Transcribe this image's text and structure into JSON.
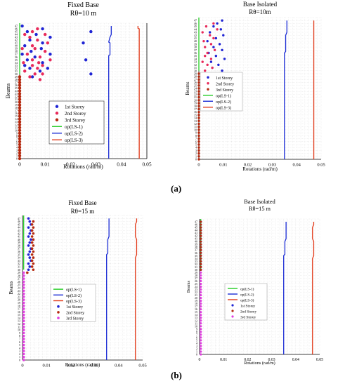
{
  "figure": {
    "label_a": "(a)",
    "label_b": "(b)"
  },
  "chart_data": [
    {
      "type": "scatter",
      "title": "Fixed Base",
      "subtitle": "Rθ=10 m",
      "xlabel": "Rotations (rad/m)",
      "ylabel": "Beams",
      "xlim": [
        0,
        0.05
      ],
      "ylim": [
        0,
        48
      ],
      "xticks": [
        "0",
        "0.01",
        "0.02",
        "0.03",
        "0.04",
        "0.05"
      ],
      "legend": [
        "1st Storey",
        "2nd Storey",
        "3rd Storey",
        "op(LS-1)",
        "op(LS-2)",
        "op(LS-3)"
      ],
      "legend_position": "middle",
      "series": [
        {
          "name": "1st Storey",
          "color": "#1f24d4",
          "marker": "circle",
          "points": [
            [
              0.001,
              47
            ],
            [
              0.009,
              46
            ],
            [
              0.003,
              45
            ],
            [
              0.028,
              45
            ],
            [
              0.0065,
              44
            ],
            [
              0.012,
              43
            ],
            [
              0.004,
              42
            ],
            [
              0.009,
              41
            ],
            [
              0.025,
              41
            ],
            [
              0.002,
              40
            ],
            [
              0.0085,
              39
            ],
            [
              0.0045,
              38
            ],
            [
              0.001,
              37
            ],
            [
              0.012,
              37
            ],
            [
              0.006,
              36
            ],
            [
              0.003,
              35
            ],
            [
              0.026,
              35
            ],
            [
              0.009,
              34
            ],
            [
              0.002,
              33
            ],
            [
              0.004,
              32
            ],
            [
              0.011,
              32
            ],
            [
              0.008,
              31
            ],
            [
              0.028,
              30
            ],
            [
              0.005,
              29
            ]
          ]
        },
        {
          "name": "2nd Storey",
          "color": "#e8295a",
          "marker": "circle",
          "points": [
            [
              0.007,
              46
            ],
            [
              0.005,
              45
            ],
            [
              0.002,
              44
            ],
            [
              0.01,
              44
            ],
            [
              0.004,
              43
            ],
            [
              0.007,
              42
            ],
            [
              0.011,
              41
            ],
            [
              0.005,
              40
            ],
            [
              0.001,
              39
            ],
            [
              0.006,
              39
            ],
            [
              0.01,
              38
            ],
            [
              0.003,
              37
            ],
            [
              0.008,
              36
            ],
            [
              0.005,
              35
            ],
            [
              0.012,
              35
            ],
            [
              0.0075,
              34
            ],
            [
              0.0015,
              34
            ],
            [
              0.005,
              33
            ],
            [
              0.009,
              33
            ],
            [
              0.007,
              32
            ],
            [
              0.002,
              31
            ],
            [
              0.006,
              30
            ],
            [
              0.009,
              30
            ],
            [
              0.004,
              29
            ],
            [
              0.008,
              28
            ]
          ]
        },
        {
          "name": "3rd Storey",
          "color": "#b5290f",
          "marker": "circle",
          "x_value": 0,
          "note": "points at every beam from 0 to 29"
        },
        {
          "name": "op(LS-1)",
          "color": "#22cc22",
          "type": "step",
          "x_value": 0,
          "y_range": [
            30,
            48
          ]
        },
        {
          "name": "op(LS-2)",
          "color": "#1a2bd4",
          "type": "step",
          "x_points": [
            [
              0.035,
              0
            ],
            [
              0.035,
              36.5
            ],
            [
              0.0355,
              36.8
            ],
            [
              0.0355,
              41
            ],
            [
              0.035,
              41.3
            ],
            [
              0.0355,
              43
            ],
            [
              0.036,
              44
            ],
            [
              0.036,
              47
            ]
          ]
        },
        {
          "name": "op(LS-3)",
          "color": "#e23a1a",
          "type": "step",
          "x_points": [
            [
              0.047,
              0
            ],
            [
              0.047,
              46
            ],
            [
              0.0465,
              46.2
            ],
            [
              0.0465,
              47
            ]
          ]
        }
      ]
    },
    {
      "type": "scatter",
      "title": "Base Isolated",
      "subtitle": "Rθ=10m",
      "xlabel": "Rotations (rad/m)",
      "ylabel": "Beams",
      "xlim": [
        0,
        0.05
      ],
      "ylim": [
        0,
        48
      ],
      "xticks": [
        "0",
        "0.01",
        "0.02",
        "0.03",
        "0.04",
        "0.05"
      ],
      "legend": [
        "1st Storey",
        "2nd Storey",
        "3rd Storey",
        "op(LS-1)",
        "op(LS-2)",
        "op(LS-3)"
      ],
      "legend_position": "middle",
      "series": [
        {
          "name": "1st Storey",
          "color": "#1f24d4",
          "marker": "circle",
          "points": [
            [
              0.0095,
              47
            ],
            [
              0.0075,
              46
            ],
            [
              0.006,
              45
            ],
            [
              0.009,
              44
            ],
            [
              0.0045,
              43
            ],
            [
              0.01,
              42
            ],
            [
              0.007,
              41
            ],
            [
              0.0035,
              40
            ],
            [
              0.0085,
              39
            ],
            [
              0.006,
              38
            ],
            [
              0.0095,
              37
            ],
            [
              0.004,
              36
            ],
            [
              0.007,
              35
            ],
            [
              0.0105,
              34
            ],
            [
              0.005,
              33
            ],
            [
              0.008,
              32
            ],
            [
              0.0055,
              31
            ],
            [
              0.0095,
              30
            ]
          ]
        },
        {
          "name": "2nd Storey",
          "color": "#e8295a",
          "marker": "circle",
          "points": [
            [
              0.006,
              46
            ],
            [
              0.003,
              45
            ],
            [
              0.0075,
              44
            ],
            [
              0.0015,
              43
            ],
            [
              0.0045,
              42
            ],
            [
              0.006,
              41
            ],
            [
              0.002,
              40
            ],
            [
              0.005,
              39
            ],
            [
              0.0025,
              38
            ],
            [
              0.0065,
              37
            ],
            [
              0.0035,
              36
            ],
            [
              0.0025,
              35
            ],
            [
              0.005,
              34
            ],
            [
              0.0015,
              33
            ],
            [
              0.0035,
              32
            ],
            [
              0.0055,
              31
            ],
            [
              0.0025,
              30
            ],
            [
              0.0095,
              29
            ]
          ]
        },
        {
          "name": "3rd Storey",
          "color": "#b5290f",
          "marker": "circle",
          "x_value": 0,
          "note": "points at every beam from 0 to 29"
        },
        {
          "name": "op(LS-1)",
          "color": "#22cc22",
          "type": "step",
          "x_value": 0,
          "y_range": [
            30,
            48
          ]
        },
        {
          "name": "op(LS-2)",
          "color": "#1a2bd4",
          "type": "step",
          "x_points": [
            [
              0.035,
              0
            ],
            [
              0.035,
              36
            ],
            [
              0.0355,
              36.5
            ],
            [
              0.0355,
              42
            ],
            [
              0.036,
              43
            ],
            [
              0.036,
              47
            ]
          ]
        },
        {
          "name": "op(LS-3)",
          "color": "#e23a1a",
          "type": "step",
          "x_points": [
            [
              0.047,
              0
            ],
            [
              0.047,
              47
            ]
          ]
        }
      ]
    },
    {
      "type": "scatter",
      "title": "Fixed Base",
      "subtitle": "Rθ=15 m",
      "xlabel": "Rotations (rad/m)",
      "ylabel": "Beams",
      "xlim": [
        0,
        0.05
      ],
      "ylim": [
        0,
        48
      ],
      "xticks": [
        "0",
        "0.01",
        "0.02",
        "0.03",
        "0.04",
        "0.05"
      ],
      "legend": [
        "op(LS-1)",
        "op(LS-2)",
        "op(LS-3)",
        "1st Storey",
        "2nd Storey",
        "3rd Storey"
      ],
      "legend_position": "middle",
      "series": [
        {
          "name": "op(LS-1)",
          "color": "#22cc22",
          "type": "step",
          "x_value": 0.0005,
          "y_range": [
            30,
            48
          ]
        },
        {
          "name": "op(LS-2)",
          "color": "#1a2bd4",
          "type": "step",
          "x_points": [
            [
              0.035,
              0
            ],
            [
              0.035,
              35
            ],
            [
              0.0355,
              35.5
            ],
            [
              0.0355,
              40
            ],
            [
              0.036,
              41
            ],
            [
              0.036,
              47
            ]
          ]
        },
        {
          "name": "op(LS-3)",
          "color": "#e23a1a",
          "type": "step",
          "x_points": [
            [
              0.047,
              0
            ],
            [
              0.047,
              34
            ],
            [
              0.0475,
              35
            ],
            [
              0.0475,
              40
            ],
            [
              0.047,
              41
            ],
            [
              0.047,
              45
            ],
            [
              0.0475,
              46
            ],
            [
              0.0475,
              47
            ]
          ]
        },
        {
          "name": "1st Storey",
          "color": "#1f24d4",
          "marker": "circle",
          "points": [
            [
              0.0025,
              47
            ],
            [
              0.003,
              46
            ],
            [
              0.0035,
              45
            ],
            [
              0.0025,
              44
            ],
            [
              0.0035,
              43
            ],
            [
              0.003,
              42
            ],
            [
              0.0025,
              41
            ],
            [
              0.0035,
              40
            ],
            [
              0.003,
              39
            ],
            [
              0.0025,
              38
            ],
            [
              0.0035,
              37
            ],
            [
              0.003,
              36
            ],
            [
              0.0025,
              35
            ],
            [
              0.003,
              34
            ],
            [
              0.0035,
              33
            ],
            [
              0.0025,
              32
            ],
            [
              0.003,
              31
            ],
            [
              0.0025,
              30
            ]
          ]
        },
        {
          "name": "2nd Storey",
          "color": "#b5290f",
          "marker": "circle",
          "points": [
            [
              0.0045,
              46
            ],
            [
              0.004,
              45
            ],
            [
              0.0045,
              44
            ],
            [
              0.004,
              43
            ],
            [
              0.0045,
              42
            ],
            [
              0.004,
              41
            ],
            [
              0.0045,
              40
            ],
            [
              0.004,
              39
            ],
            [
              0.0045,
              38
            ],
            [
              0.004,
              37
            ],
            [
              0.0045,
              36
            ],
            [
              0.004,
              35
            ],
            [
              0.0045,
              34
            ],
            [
              0.004,
              33
            ],
            [
              0.0045,
              32
            ],
            [
              0.004,
              31
            ],
            [
              0.0045,
              30
            ],
            [
              0.002,
              29
            ]
          ]
        },
        {
          "name": "3rd Storey",
          "color": "#e040e0",
          "marker": "circle",
          "x_value": 0.0005,
          "note": "points at every beam from 0 to 29"
        }
      ]
    },
    {
      "type": "scatter",
      "title": "Base Isolated",
      "subtitle": "Rθ=15 m",
      "xlabel": "Rotations (rad/m)",
      "ylabel": "Beams",
      "xlim": [
        0,
        0.05
      ],
      "ylim": [
        0,
        48
      ],
      "xticks": [
        "0",
        "0.01",
        "0.02",
        "0.03",
        "0.04",
        "0.05"
      ],
      "legend": [
        "op(LS-1)",
        "op(LS-2)",
        "op(LS-3)",
        "1st Storey",
        "2nd Storey",
        "3rd Storey"
      ],
      "legend_position": "middle",
      "series": [
        {
          "name": "op(LS-1)",
          "color": "#22cc22",
          "type": "step",
          "x_value": 0.0005,
          "y_range": [
            30,
            48
          ]
        },
        {
          "name": "op(LS-2)",
          "color": "#1a2bd4",
          "type": "step",
          "x_points": [
            [
              0.035,
              0
            ],
            [
              0.035,
              35
            ],
            [
              0.0355,
              35.5
            ],
            [
              0.0355,
              40
            ],
            [
              0.036,
              41
            ],
            [
              0.036,
              47
            ]
          ]
        },
        {
          "name": "op(LS-3)",
          "color": "#e23a1a",
          "type": "step",
          "x_points": [
            [
              0.047,
              0
            ],
            [
              0.047,
              34
            ],
            [
              0.0475,
              35
            ],
            [
              0.0475,
              40
            ],
            [
              0.047,
              41
            ],
            [
              0.047,
              45
            ],
            [
              0.0475,
              46
            ],
            [
              0.0475,
              47
            ]
          ]
        },
        {
          "name": "1st Storey",
          "color": "#1f24d4",
          "marker": "circle",
          "x_value": 0.0005,
          "note": "points at every beam from 30 to 47"
        },
        {
          "name": "2nd Storey",
          "color": "#b5290f",
          "marker": "circle",
          "x_value": 0.0005,
          "note": "points at every beam from 30 to 47"
        },
        {
          "name": "3rd Storey",
          "color": "#e040e0",
          "marker": "circle",
          "x_value": 0.0005,
          "note": "points at every beam from 0 to 29"
        }
      ]
    }
  ]
}
